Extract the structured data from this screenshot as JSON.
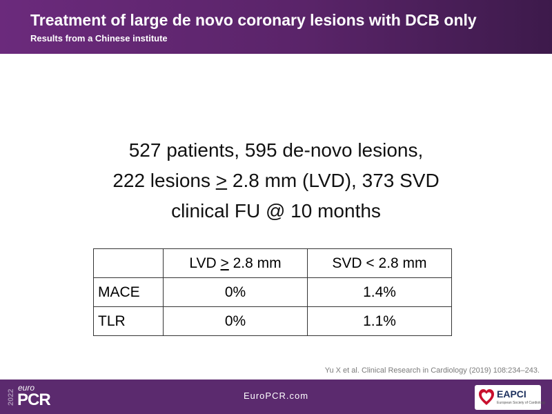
{
  "header": {
    "title": "Treatment of large de novo coronary lesions with DCB only",
    "subtitle": "Results from a Chinese institute"
  },
  "body": {
    "line1": "527 patients, 595 de-novo lesions,",
    "line2_pre": "222 lesions ",
    "line2_ge": ">",
    "line2_post": " 2.8 mm (LVD), 373 SVD",
    "line3": "clinical FU @ 10 months"
  },
  "table": {
    "header_lvd_pre": "LVD ",
    "header_lvd_sym": ">",
    "header_lvd_post": " 2.8 mm",
    "header_svd": "SVD < 2.8 mm",
    "rows": [
      {
        "label": "MACE",
        "lvd": "0%",
        "svd": "1.4%"
      },
      {
        "label": "TLR",
        "lvd": "0%",
        "svd": "1.1%"
      }
    ]
  },
  "citation": "Yu X et al. Clinical Research in Cardiology (2019) 108:234–243.",
  "footer": {
    "logo_year": "2022",
    "logo_euro": "euro",
    "logo_pcr": "PCR",
    "site": "EuroPCR.com",
    "partner_name": "EAPCI",
    "partner_sub": "European Society of Cardiology"
  },
  "colors": {
    "header_bg": "#5a2469",
    "footer_bg": "#5b2a6e",
    "partner_red": "#c8102e"
  },
  "icons": [
    "europcr-logo",
    "eapci-heart-icon"
  ]
}
